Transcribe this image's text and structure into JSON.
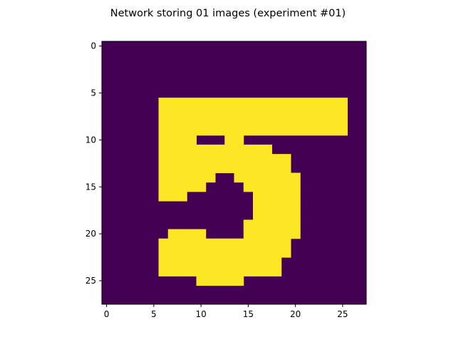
{
  "chart_data": {
    "type": "heatmap",
    "title": "Network storing 01 images (experiment #01)",
    "xlabel": "",
    "ylabel": "",
    "rows": 28,
    "cols": 28,
    "xlim": [
      -0.5,
      27.5
    ],
    "ylim": [
      27.5,
      -0.5
    ],
    "xticks": [
      0,
      5,
      10,
      15,
      20,
      25
    ],
    "yticks": [
      0,
      5,
      10,
      15,
      20,
      25
    ],
    "colormap": "viridis",
    "colors": {
      "low": "#440154",
      "high": "#fde725"
    },
    "grid": false,
    "legend": "none",
    "active_cells_by_row": [
      {
        "row": 6,
        "cols": [
          6,
          25
        ]
      },
      {
        "row": 7,
        "cols": [
          6,
          25
        ]
      },
      {
        "row": 8,
        "cols": [
          6,
          25
        ]
      },
      {
        "row": 9,
        "cols": [
          6,
          25
        ]
      },
      {
        "row": 10,
        "cols": [
          6,
          9
        ],
        "also": [
          [
            13,
            14
          ]
        ]
      },
      {
        "row": 11,
        "cols": [
          6,
          17
        ]
      },
      {
        "row": 12,
        "cols": [
          6,
          19
        ]
      },
      {
        "row": 13,
        "cols": [
          6,
          19
        ]
      },
      {
        "row": 14,
        "cols": [
          6,
          11
        ],
        "also": [
          [
            14,
            20
          ]
        ]
      },
      {
        "row": 15,
        "cols": [
          6,
          10
        ],
        "also": [
          [
            15,
            20
          ]
        ]
      },
      {
        "row": 16,
        "cols": [
          6,
          8
        ],
        "also": [
          [
            16,
            20
          ]
        ]
      },
      {
        "row": 17,
        "cols": [
          16,
          20
        ]
      },
      {
        "row": 18,
        "cols": [
          16,
          20
        ]
      },
      {
        "row": 19,
        "cols": [
          15,
          20
        ]
      },
      {
        "row": 20,
        "cols": [
          7,
          10
        ],
        "also": [
          [
            15,
            20
          ]
        ]
      },
      {
        "row": 21,
        "cols": [
          6,
          19
        ]
      },
      {
        "row": 22,
        "cols": [
          6,
          19
        ]
      },
      {
        "row": 23,
        "cols": [
          6,
          18
        ]
      },
      {
        "row": 24,
        "cols": [
          6,
          18
        ]
      },
      {
        "row": 25,
        "cols": [
          10,
          14
        ]
      }
    ]
  }
}
